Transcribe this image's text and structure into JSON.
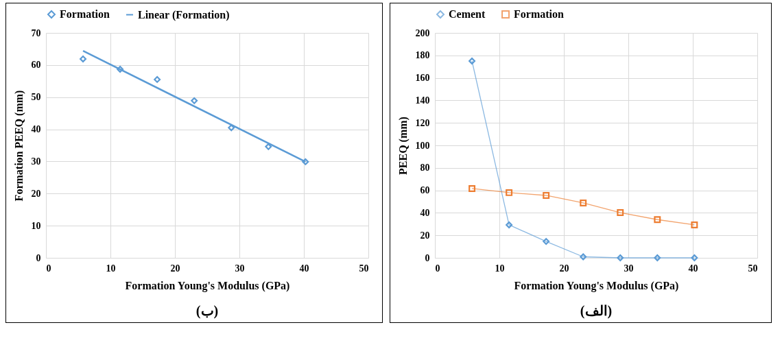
{
  "chart_data": [
    {
      "type": "scatter",
      "title": "(ب)",
      "xlabel": "Formation Young's Modulus (GPa)",
      "ylabel": "Formation PEEQ (mm)",
      "x": [
        5.75,
        11.5,
        17.25,
        23,
        28.75,
        34.5,
        40.25
      ],
      "series": [
        {
          "name": "Formation",
          "color": "#5b9bd5",
          "marker": "diamond",
          "values": [
            61.9,
            58.7,
            55.5,
            48.9,
            40.5,
            34.6,
            29.9
          ]
        },
        {
          "name": "Linear (Formation)",
          "type": "line",
          "color": "#5b9bd5",
          "marker": "none",
          "x": [
            5.75,
            40.25
          ],
          "values": [
            64.4,
            29.9
          ]
        }
      ],
      "xlim": [
        0,
        50
      ],
      "xticks": [
        0,
        10,
        20,
        30,
        40,
        50
      ],
      "ylim": [
        0,
        70
      ],
      "yticks": [
        0,
        10,
        20,
        30,
        40,
        50,
        60,
        70
      ],
      "grid": true,
      "legend": "top"
    },
    {
      "type": "line",
      "title": "(الف)",
      "xlabel": "Formation Young's Modulus (GPa)",
      "ylabel": "PEEQ (mm)",
      "x": [
        5.75,
        11.5,
        17.25,
        23,
        28.75,
        34.5,
        40.25
      ],
      "series": [
        {
          "name": "Cement",
          "color": "#5b9bd5",
          "marker": "diamond",
          "values": [
            175,
            29.3,
            14.6,
            0.9,
            0,
            0,
            0
          ]
        },
        {
          "name": "Formation",
          "color": "#ed7d31",
          "marker": "square",
          "values": [
            61.6,
            58,
            55.5,
            48.8,
            40.2,
            34,
            29.3
          ]
        }
      ],
      "xlim": [
        0,
        50
      ],
      "xticks": [
        0,
        10,
        20,
        30,
        40,
        50
      ],
      "ylim": [
        0,
        200
      ],
      "yticks": [
        0,
        20,
        40,
        60,
        80,
        100,
        120,
        140,
        160,
        180,
        200
      ],
      "grid": true,
      "legend": "top"
    }
  ]
}
